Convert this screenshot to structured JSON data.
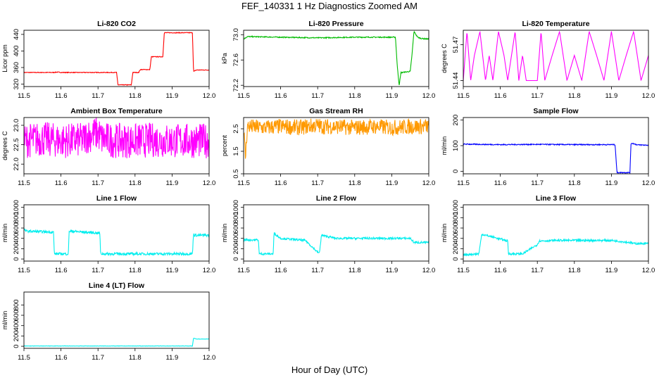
{
  "figure": {
    "title": "FEF_140331  1 Hz Diagnostics Zoomed AM",
    "xlabel": "Hour of Day (UTC)"
  },
  "chart_data": [
    {
      "type": "line",
      "title": "Li-820 CO2",
      "xlabel": "",
      "ylabel": "Licor ppm",
      "color": "#ff0000",
      "xlim": [
        11.5,
        12.0
      ],
      "ylim": [
        314,
        450
      ],
      "xticks": [
        11.5,
        11.6,
        11.7,
        11.8,
        11.9,
        12.0
      ],
      "xtick_labels": [
        "11.5",
        "11.6",
        "11.7",
        "11.8",
        "11.9",
        "12.0"
      ],
      "yticks": [
        320,
        360,
        400,
        440
      ],
      "ytick_labels": [
        "320",
        "360",
        "400",
        "440"
      ],
      "noise": 0.8,
      "series": [
        {
          "x": [
            11.5,
            11.58,
            11.59,
            11.6,
            11.75,
            11.754,
            11.79,
            11.794,
            11.81,
            11.814,
            11.84,
            11.844,
            11.875,
            11.879,
            11.955,
            11.958,
            11.965,
            12.0
          ],
          "y": [
            348,
            348,
            349,
            348,
            348,
            318,
            318,
            348,
            348,
            355,
            355,
            386,
            386,
            444,
            444,
            350,
            354,
            354
          ]
        }
      ]
    },
    {
      "type": "line",
      "title": "Li-820 Pressure",
      "xlabel": "",
      "ylabel": "kPa",
      "color": "#00bb00",
      "xlim": [
        11.5,
        12.0
      ],
      "ylim": [
        72.18,
        73.07
      ],
      "xticks": [
        11.5,
        11.6,
        11.7,
        11.8,
        11.9,
        12.0
      ],
      "xtick_labels": [
        "11.5",
        "11.6",
        "11.7",
        "11.8",
        "11.9",
        "12.0"
      ],
      "yticks": [
        72.2,
        72.6,
        73.0
      ],
      "ytick_labels": [
        "72.2",
        "72.6",
        "73.0"
      ],
      "noise": 0.008,
      "series": [
        {
          "x": [
            11.5,
            11.51,
            11.6,
            11.7,
            11.8,
            11.9,
            11.91,
            11.915,
            11.92,
            11.925,
            11.95,
            11.955,
            11.96,
            11.97,
            11.98,
            12.0
          ],
          "y": [
            72.93,
            72.97,
            72.96,
            72.95,
            72.96,
            72.96,
            72.96,
            72.5,
            72.2,
            72.4,
            72.42,
            72.7,
            73.05,
            72.96,
            72.94,
            72.93
          ]
        }
      ]
    },
    {
      "type": "line",
      "title": "Li-820 Temperature",
      "xlabel": "",
      "ylabel": "degrees C",
      "color": "#ff00ff",
      "xlim": [
        11.5,
        12.0
      ],
      "ylim": [
        51.435,
        51.482
      ],
      "xticks": [
        11.5,
        11.6,
        11.7,
        11.8,
        11.9,
        12.0
      ],
      "xtick_labels": [
        "11.5",
        "11.6",
        "11.7",
        "11.8",
        "11.9",
        "12.0"
      ],
      "yticks": [
        51.44,
        51.47
      ],
      "ytick_labels": [
        "51.44",
        "51.47"
      ],
      "noise": 0,
      "series": [
        {
          "x": [
            11.5,
            11.51,
            11.52,
            11.53,
            11.545,
            11.56,
            11.57,
            11.58,
            11.595,
            11.61,
            11.62,
            11.64,
            11.65,
            11.66,
            11.67,
            11.7,
            11.71,
            11.72,
            11.74,
            11.76,
            11.78,
            11.8,
            11.82,
            11.84,
            11.86,
            11.88,
            11.9,
            11.92,
            11.94,
            11.96,
            11.98,
            12.0
          ],
          "y": [
            51.44,
            51.481,
            51.44,
            51.461,
            51.481,
            51.44,
            51.461,
            51.44,
            51.481,
            51.461,
            51.44,
            51.481,
            51.44,
            51.461,
            51.44,
            51.44,
            51.481,
            51.44,
            51.461,
            51.481,
            51.44,
            51.461,
            51.44,
            51.481,
            51.461,
            51.44,
            51.481,
            51.44,
            51.461,
            51.481,
            51.44,
            51.461
          ]
        }
      ]
    },
    {
      "type": "line",
      "title": "Ambient Box Temperature",
      "xlabel": "",
      "ylabel": "degrees C",
      "color": "#ff00ff",
      "xlim": [
        11.5,
        12.0
      ],
      "ylim": [
        21.75,
        23.2
      ],
      "xticks": [
        11.5,
        11.6,
        11.7,
        11.8,
        11.9,
        12.0
      ],
      "xtick_labels": [
        "11.5",
        "11.6",
        "11.7",
        "11.8",
        "11.9",
        "12.0"
      ],
      "yticks": [
        22.0,
        22.5,
        23.0
      ],
      "ytick_labels": [
        "22.0",
        "22.5",
        "23.0"
      ],
      "noise": 0.45,
      "series": [
        {
          "x": [
            11.5,
            11.55,
            11.6,
            11.66,
            11.665,
            11.68,
            11.7,
            11.71,
            11.75,
            11.8,
            11.85,
            11.9,
            11.95,
            12.0
          ],
          "y": [
            22.6,
            22.65,
            22.6,
            22.62,
            22.7,
            22.75,
            22.8,
            22.65,
            22.6,
            22.6,
            22.62,
            22.6,
            22.6,
            22.6
          ]
        }
      ]
    },
    {
      "type": "line",
      "title": "Gas Stream RH",
      "xlabel": "",
      "ylabel": "percent",
      "color": "#ff9900",
      "xlim": [
        11.5,
        12.0
      ],
      "ylim": [
        0.5,
        3.0
      ],
      "xticks": [
        11.5,
        11.6,
        11.7,
        11.8,
        11.9,
        12.0
      ],
      "xtick_labels": [
        "11.5",
        "11.6",
        "11.7",
        "11.8",
        "11.9",
        "12.0"
      ],
      "yticks": [
        0.5,
        1.5,
        2.5
      ],
      "ytick_labels": [
        "0.5",
        "1.5",
        "2.5"
      ],
      "noise": 0.35,
      "series": [
        {
          "x": [
            11.5,
            11.505,
            11.51,
            11.55,
            11.6,
            11.66,
            11.665,
            11.7,
            11.71,
            11.75,
            11.8,
            11.85,
            11.9,
            11.95,
            12.0
          ],
          "y": [
            2.6,
            1.2,
            2.6,
            2.55,
            2.6,
            2.55,
            2.6,
            2.65,
            2.6,
            2.6,
            2.55,
            2.6,
            2.55,
            2.6,
            2.6
          ]
        }
      ]
    },
    {
      "type": "line",
      "title": "Sample Flow",
      "xlabel": "",
      "ylabel": "ml/min",
      "color": "#0000ff",
      "xlim": [
        11.5,
        12.0
      ],
      "ylim": [
        -10,
        210
      ],
      "xticks": [
        11.5,
        11.6,
        11.7,
        11.8,
        11.9,
        12.0
      ],
      "xtick_labels": [
        "11.5",
        "11.6",
        "11.7",
        "11.8",
        "11.9",
        "12.0"
      ],
      "yticks": [
        0,
        100,
        200
      ],
      "ytick_labels": [
        "0",
        "100",
        "200"
      ],
      "noise": 2,
      "series": [
        {
          "x": [
            11.5,
            11.55,
            11.6,
            11.7,
            11.8,
            11.9,
            11.91,
            11.912,
            11.915,
            11.95,
            11.953,
            11.96,
            11.97,
            12.0
          ],
          "y": [
            106,
            105,
            104,
            105,
            104,
            104,
            104,
            60,
            -5,
            -5,
            110,
            108,
            103,
            102
          ]
        }
      ]
    },
    {
      "type": "line",
      "title": "Line 1 Flow",
      "xlabel": "",
      "ylabel": "ml/min",
      "color": "#00eeee",
      "xlim": [
        11.5,
        12.0
      ],
      "ylim": [
        -40,
        1050
      ],
      "xticks": [
        11.5,
        11.6,
        11.7,
        11.8,
        11.9,
        12.0
      ],
      "xtick_labels": [
        "11.5",
        "11.6",
        "11.7",
        "11.8",
        "11.9",
        "12.0"
      ],
      "yticks": [
        0,
        200,
        400,
        600,
        800,
        1000
      ],
      "ytick_labels": [
        "0",
        "200",
        "400",
        "600",
        "800",
        "1000"
      ],
      "noise": 25,
      "series": [
        {
          "x": [
            11.5,
            11.505,
            11.58,
            11.582,
            11.62,
            11.622,
            11.705,
            11.707,
            11.955,
            11.958,
            11.96,
            12.0
          ],
          "y": [
            580,
            540,
            520,
            100,
            100,
            540,
            500,
            100,
            100,
            500,
            460,
            460
          ]
        }
      ]
    },
    {
      "type": "line",
      "title": "Line 2 Flow",
      "xlabel": "",
      "ylabel": "ml/min",
      "color": "#00eeee",
      "xlim": [
        11.5,
        12.0
      ],
      "ylim": [
        -40,
        1050
      ],
      "xticks": [
        11.5,
        11.6,
        11.7,
        11.8,
        11.9,
        12.0
      ],
      "xtick_labels": [
        "11.5",
        "11.6",
        "11.7",
        "11.8",
        "11.9",
        "12.0"
      ],
      "yticks": [
        0,
        200,
        400,
        600,
        800,
        1000
      ],
      "ytick_labels": [
        "0",
        "200",
        "400",
        "600",
        "800",
        "1000"
      ],
      "noise": 20,
      "series": [
        {
          "x": [
            11.5,
            11.54,
            11.542,
            11.58,
            11.582,
            11.6,
            11.665,
            11.667,
            11.7,
            11.705,
            11.71,
            11.75,
            11.8,
            11.95,
            11.96,
            12.0
          ],
          "y": [
            370,
            370,
            100,
            100,
            500,
            400,
            360,
            360,
            130,
            120,
            460,
            400,
            400,
            400,
            320,
            320
          ]
        }
      ]
    },
    {
      "type": "line",
      "title": "Line 3 Flow",
      "xlabel": "",
      "ylabel": "ml/min",
      "color": "#00eeee",
      "xlim": [
        11.5,
        12.0
      ],
      "ylim": [
        -40,
        1050
      ],
      "xticks": [
        11.5,
        11.6,
        11.7,
        11.8,
        11.9,
        12.0
      ],
      "xtick_labels": [
        "11.5",
        "11.6",
        "11.7",
        "11.8",
        "11.9",
        "12.0"
      ],
      "yticks": [
        0,
        200,
        400,
        600,
        800,
        1000
      ],
      "ytick_labels": [
        "0",
        "200",
        "400",
        "600",
        "800",
        "1000"
      ],
      "noise": 20,
      "series": [
        {
          "x": [
            11.5,
            11.54,
            11.542,
            11.55,
            11.62,
            11.622,
            11.66,
            11.665,
            11.7,
            11.705,
            11.75,
            11.9,
            11.95,
            11.96,
            12.0
          ],
          "y": [
            80,
            100,
            100,
            480,
            350,
            100,
            100,
            120,
            280,
            350,
            360,
            360,
            320,
            300,
            300
          ]
        }
      ]
    },
    {
      "type": "line",
      "title": "Line 4 (LT) Flow",
      "xlabel": "",
      "ylabel": "ml/min",
      "color": "#00eeee",
      "xlim": [
        11.5,
        12.0
      ],
      "ylim": [
        -40,
        1050
      ],
      "xticks": [
        11.5,
        11.6,
        11.7,
        11.8,
        11.9,
        12.0
      ],
      "xtick_labels": [
        "11.5",
        "11.6",
        "11.7",
        "11.8",
        "11.9",
        "12.0"
      ],
      "yticks": [
        0,
        200,
        400,
        600,
        800
      ],
      "ytick_labels": [
        "0",
        "200",
        "400",
        "600",
        "800"
      ],
      "noise": 3,
      "series": [
        {
          "x": [
            11.5,
            11.6,
            11.7,
            11.8,
            11.9,
            11.955,
            11.958,
            11.965,
            12.0
          ],
          "y": [
            5,
            5,
            5,
            5,
            5,
            5,
            160,
            140,
            140
          ]
        }
      ]
    }
  ]
}
